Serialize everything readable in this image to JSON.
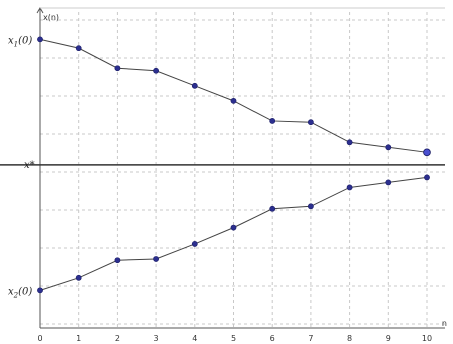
{
  "chart_data": {
    "type": "line",
    "xlabel": "n",
    "ylabel": "x(n)",
    "x": [
      0,
      1,
      2,
      3,
      4,
      5,
      6,
      7,
      8,
      9,
      10
    ],
    "x_ticks": [
      "0",
      "1",
      "2",
      "3",
      "4",
      "5",
      "6",
      "7",
      "8",
      "9",
      "10"
    ],
    "y_labels": {
      "top": "x_1(0)",
      "middle": "x*",
      "bottom": "x_2(0)"
    },
    "reference_line": {
      "y": 0,
      "label": "x*"
    },
    "ylim": [
      -1.3,
      1.25
    ],
    "xlim": [
      0,
      10.5
    ],
    "grid": true,
    "series": [
      {
        "values": [
          1.0,
          0.93,
          0.77,
          0.75,
          0.63,
          0.51,
          0.35,
          0.34,
          0.18,
          0.14,
          0.1
        ]
      },
      {
        "values": [
          -1.0,
          -0.9,
          -0.76,
          -0.75,
          -0.63,
          -0.5,
          -0.35,
          -0.33,
          -0.18,
          -0.14,
          -0.1
        ]
      }
    ],
    "colors": {
      "marker": "#2c2f8f",
      "line": "#444444",
      "grid": "#c8c8c8"
    }
  }
}
